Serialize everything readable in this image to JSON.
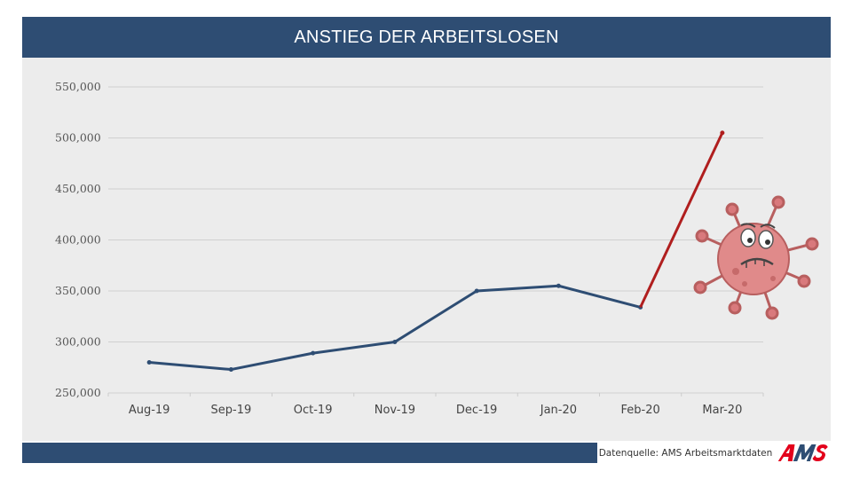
{
  "header": {
    "title": "ANSTIEG DER ARBEITSLOSEN"
  },
  "footer": {
    "source": "Datenquelle: AMS Arbeitsmarktdaten",
    "logo_text": "AMS"
  },
  "colors": {
    "title_bar": "#2e4d73",
    "line_main": "#2e4d73",
    "line_spike": "#b01e1e",
    "plot_background": "#ececec",
    "virus_body": "#e08a8a",
    "logo_red": "#e3001b"
  },
  "illustration": "sad-virus-icon",
  "chart_data": {
    "type": "line",
    "title": "ANSTIEG DER ARBEITSLOSEN",
    "categories": [
      "Aug-19",
      "Sep-19",
      "Oct-19",
      "Nov-19",
      "Dec-19",
      "Jan-20",
      "Feb-20",
      "Mar-20"
    ],
    "values": [
      280000,
      273000,
      289000,
      300000,
      350000,
      355000,
      334000,
      505000
    ],
    "yticks": [
      "550,000",
      "500,000",
      "450,000",
      "400,000",
      "350,000",
      "300,000",
      "250,000"
    ],
    "ylim": [
      250000,
      550000
    ],
    "highlight_last_segment": true,
    "grid": true,
    "legend": "none"
  }
}
